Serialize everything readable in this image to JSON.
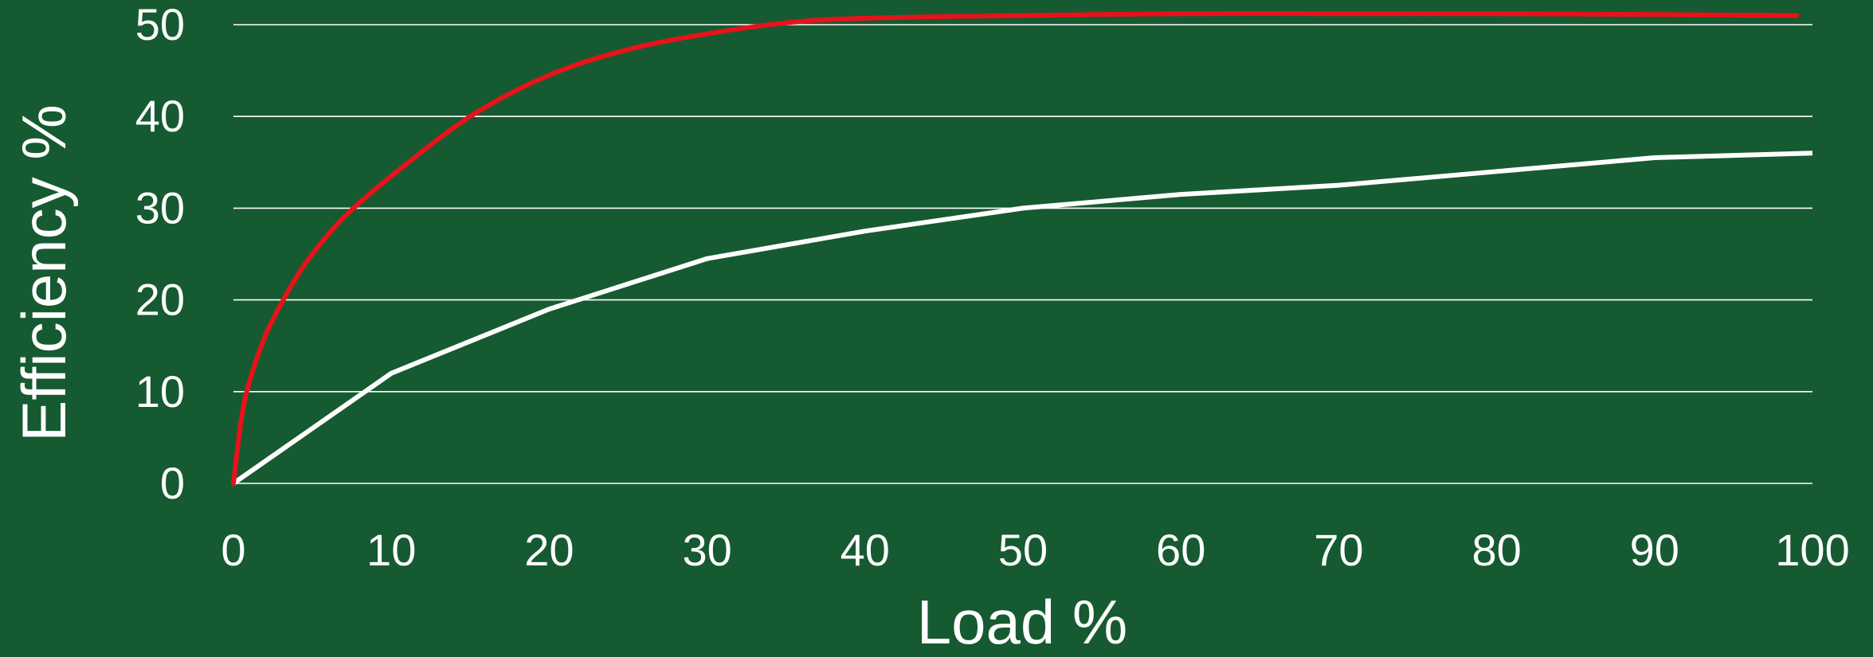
{
  "colors": {
    "background": "#165a31",
    "grid": "#ffffff",
    "text": "#ffffff",
    "series_red": "#e8121b",
    "series_white": "#ffffff"
  },
  "chart_data": {
    "type": "line",
    "title": "",
    "xlabel": "Load %",
    "ylabel": "Efficiency %",
    "xlim": [
      0,
      100
    ],
    "ylim": [
      0,
      50
    ],
    "x_ticks": [
      "0",
      "10",
      "20",
      "30",
      "40",
      "50",
      "60",
      "70",
      "80",
      "90",
      "100"
    ],
    "y_ticks": [
      "0",
      "10",
      "20",
      "30",
      "40",
      "50"
    ],
    "grid": "horizontal",
    "legend": "none",
    "series": [
      {
        "color": "#e8121b",
        "x": [
          0,
          0.5,
          1,
          2,
          3,
          4,
          5,
          7,
          10,
          15,
          20,
          25,
          30,
          35,
          40,
          50,
          60,
          70,
          80,
          90,
          99
        ],
        "y": [
          0,
          7,
          11,
          16,
          19.5,
          22.5,
          25,
          29,
          33.5,
          40,
          44.5,
          47.3,
          49,
          50.2,
          50.7,
          51,
          51.2,
          51.2,
          51.2,
          51.1,
          51
        ]
      },
      {
        "color": "#ffffff",
        "x": [
          0,
          10,
          20,
          30,
          40,
          50,
          60,
          70,
          80,
          90,
          100
        ],
        "y": [
          0,
          12,
          19,
          24.5,
          27.5,
          30,
          31.5,
          32.5,
          34,
          35.5,
          36
        ]
      }
    ]
  }
}
